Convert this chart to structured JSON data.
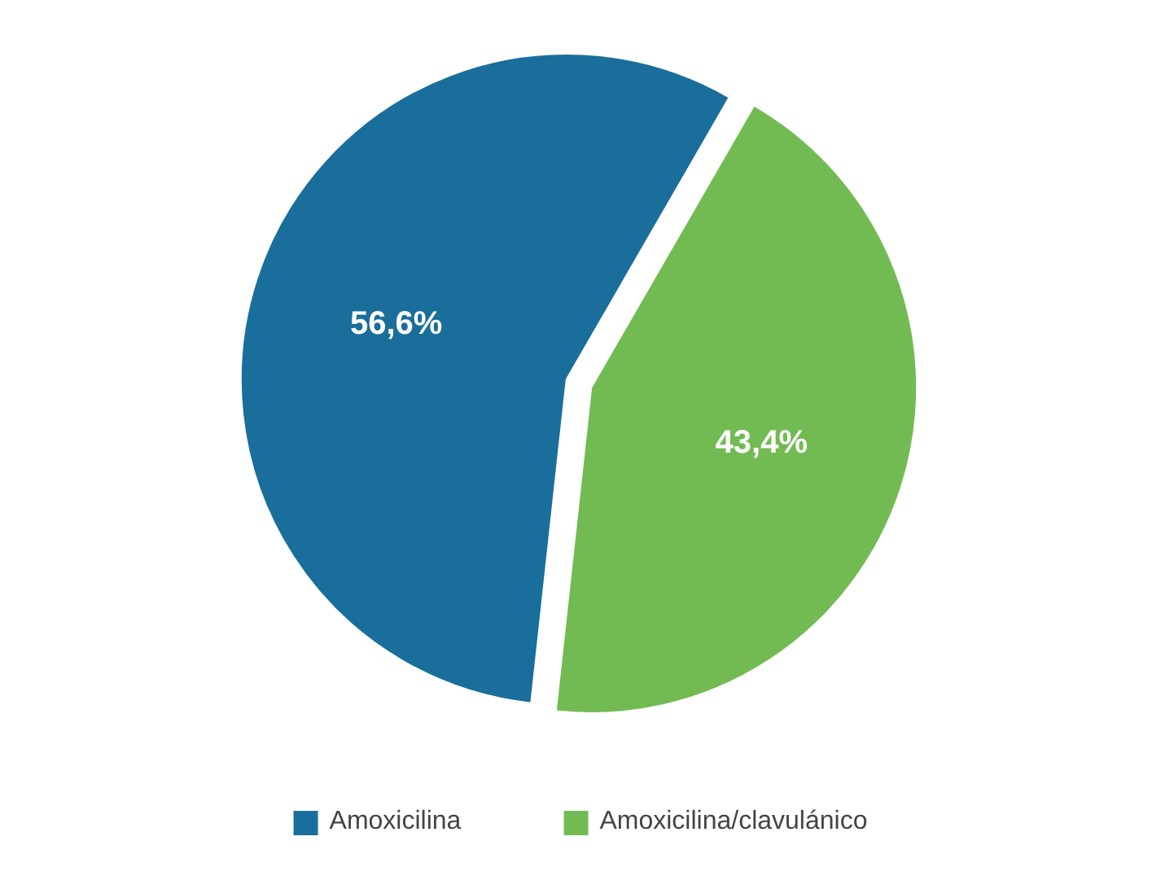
{
  "chart_data": {
    "type": "pie",
    "categories": [
      "Amoxicilina",
      "Amoxicilina/clavulánico"
    ],
    "values": [
      56.6,
      43.4
    ],
    "colors": [
      "#1a6e9b",
      "#72bb53"
    ],
    "value_labels": [
      "56,6%",
      "43,4%"
    ],
    "legend": "bottom"
  }
}
